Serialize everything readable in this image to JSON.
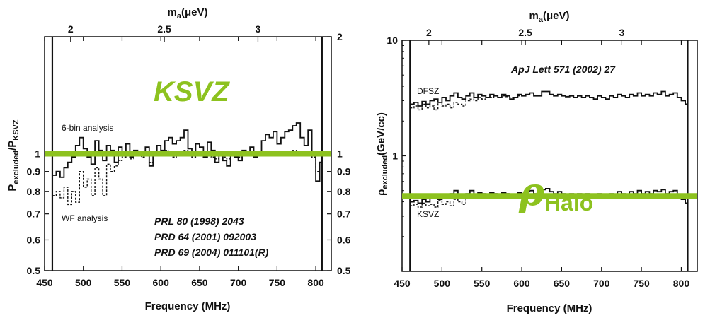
{
  "colors": {
    "accent": "#8dc21f",
    "line": "#111111"
  },
  "chart_data": [
    {
      "type": "line",
      "title": "KSVZ",
      "xlabel": "Frequency (MHz)",
      "ylabel_main": "P",
      "ylabel_sub1": "excluded",
      "ylabel_mid": "/P",
      "ylabel_sub2": "KSVZ",
      "top_axis_main": "m",
      "top_axis_sub": "a",
      "top_axis_unit": "(μeV)",
      "xlim": [
        450,
        820
      ],
      "ylim": [
        0.5,
        2
      ],
      "yscale": "log",
      "xticks": [
        "450",
        "500",
        "550",
        "600",
        "650",
        "700",
        "750",
        "800"
      ],
      "yticks_left": [
        "0.5",
        "0.6",
        "0.7",
        "0.8",
        "0.9",
        "1"
      ],
      "yticks_right": [
        "0.5",
        "0.6",
        "0.7",
        "0.8",
        "0.9",
        "1",
        "2"
      ],
      "top_ticks": [
        "2",
        "2.5",
        "3"
      ],
      "top_tick_freq": [
        483.6,
        604.5,
        725.4
      ],
      "bounds": [
        460,
        808
      ],
      "reference_line": 1,
      "annotations": [
        "6-bin analysis",
        "WF analysis"
      ],
      "references": [
        "PRL 80 (1998) 2043",
        "PRD 64 (2001) 092003",
        "PRD 69 (2004) 011101(R)"
      ],
      "series": [
        {
          "name": "6-bin analysis",
          "style": "solid",
          "x": [
            460,
            465,
            470,
            475,
            480,
            485,
            490,
            495,
            500,
            505,
            510,
            515,
            520,
            525,
            530,
            535,
            540,
            545,
            550,
            555,
            560,
            565,
            570,
            575,
            580,
            585,
            590,
            595,
            600,
            605,
            610,
            615,
            620,
            625,
            630,
            635,
            640,
            645,
            650,
            655,
            660,
            665,
            670,
            675,
            680,
            685,
            690,
            695,
            700,
            705,
            710,
            715,
            720,
            725,
            730,
            735,
            740,
            745,
            750,
            755,
            760,
            765,
            770,
            775,
            780,
            785,
            790,
            795,
            800,
            805,
            808
          ],
          "values": [
            0.88,
            0.9,
            0.87,
            0.92,
            0.95,
            0.98,
            1.05,
            1.1,
            1.03,
            0.98,
            0.94,
            1.08,
            1.02,
            0.96,
            1.05,
            1.02,
            0.95,
            1.04,
            1.0,
            1.06,
            0.98,
            1.02,
            1.01,
            0.99,
            1.04,
            0.93,
            1.0,
            1.05,
            1.02,
            1.08,
            1.1,
            1.06,
            1.08,
            1.1,
            1.15,
            1.03,
            1.0,
            1.06,
            1.04,
            0.98,
            1.07,
            1.02,
            0.95,
            0.99,
            0.96,
            0.93,
            1.0,
            0.98,
            0.96,
            1.02,
            1.0,
            1.04,
            0.98,
            1.0,
            1.08,
            1.12,
            1.1,
            1.14,
            1.06,
            1.1,
            1.14,
            1.15,
            1.18,
            1.2,
            1.1,
            1.05,
            1.15,
            1.0,
            0.85,
            0.95,
            0.95
          ]
        },
        {
          "name": "WF analysis",
          "style": "dashed",
          "x": [
            460,
            465,
            470,
            475,
            480,
            485,
            490,
            495,
            500,
            505,
            510,
            515,
            520,
            525,
            530,
            535,
            540,
            545,
            550,
            555,
            560,
            565,
            570,
            575,
            580,
            585,
            590,
            595,
            600,
            605,
            610,
            615,
            620,
            625,
            630,
            635,
            640,
            645,
            650,
            655,
            660,
            665,
            670,
            675,
            680,
            685,
            690,
            695,
            700,
            705,
            710,
            715,
            720,
            725,
            730,
            735,
            740,
            745,
            750,
            755,
            760,
            765,
            770,
            775,
            780,
            785,
            790,
            795,
            800,
            805,
            808
          ],
          "values": [
            0.78,
            0.8,
            0.77,
            0.82,
            0.74,
            0.8,
            0.75,
            0.9,
            0.82,
            0.86,
            0.78,
            0.92,
            0.86,
            0.78,
            0.94,
            0.9,
            0.93,
            0.96,
            0.98,
            1.0,
            0.97,
            1.0,
            0.99,
            0.98,
            1.01,
            0.95,
            0.99,
            1.0,
            0.99,
            1.02,
            1.0,
            0.98,
            1.01,
            1.0,
            1.02,
            0.99,
            0.98,
            1.0,
            1.01,
            0.99,
            1.0,
            0.98,
            0.97,
            0.99,
            0.98,
            0.97,
            1.0,
            0.99,
            0.98,
            1.0,
            1.0,
            1.01,
            0.99,
            1.0,
            1.01,
            1.0,
            1.0,
            1.01,
            0.99,
            1.0,
            1.01,
            1.0,
            1.02,
            1.01,
            1.0,
            0.99,
            1.0,
            0.98,
            0.9,
            0.95,
            0.95
          ]
        }
      ]
    },
    {
      "type": "line",
      "title_symbol": "ρ",
      "title_sub": "Halo",
      "xlabel": "Frequency (MHz)",
      "ylabel_main": "ρ",
      "ylabel_sub1": "excluded",
      "ylabel_mid": "(GeV/cc)",
      "top_axis_main": "m",
      "top_axis_sub": "a",
      "top_axis_unit": "(μeV)",
      "xlim": [
        450,
        820
      ],
      "ylim": [
        0.1,
        10
      ],
      "yscale": "log",
      "xticks": [
        "450",
        "500",
        "550",
        "600",
        "650",
        "700",
        "750",
        "800"
      ],
      "yticks_left": [
        "1",
        "10"
      ],
      "top_ticks": [
        "2",
        "2.5",
        "3"
      ],
      "top_tick_freq": [
        483.6,
        604.5,
        725.4
      ],
      "bounds": [
        460,
        808
      ],
      "reference_line": 0.45,
      "annotations": [
        "DFSZ",
        "KSVZ"
      ],
      "references": [
        "ApJ Lett 571 (2002) 27"
      ],
      "series": [
        {
          "name": "DFSZ",
          "style": "solid",
          "x": [
            460,
            465,
            470,
            475,
            480,
            485,
            490,
            495,
            500,
            505,
            510,
            515,
            520,
            525,
            530,
            535,
            540,
            545,
            550,
            555,
            560,
            565,
            570,
            575,
            580,
            585,
            590,
            595,
            600,
            605,
            610,
            615,
            620,
            625,
            630,
            635,
            640,
            645,
            650,
            655,
            660,
            665,
            670,
            675,
            680,
            685,
            690,
            695,
            700,
            705,
            710,
            715,
            720,
            725,
            730,
            735,
            740,
            745,
            750,
            755,
            760,
            765,
            770,
            775,
            780,
            785,
            790,
            795,
            800,
            805,
            808
          ],
          "values": [
            2.8,
            2.9,
            2.7,
            2.95,
            2.8,
            3.0,
            3.1,
            2.9,
            3.2,
            3.0,
            3.3,
            3.5,
            3.2,
            3.1,
            3.3,
            3.5,
            3.2,
            3.4,
            3.3,
            3.2,
            3.4,
            3.3,
            3.2,
            3.4,
            3.3,
            3.1,
            3.2,
            3.4,
            3.3,
            3.4,
            3.5,
            3.3,
            3.3,
            3.6,
            3.6,
            3.4,
            3.3,
            3.4,
            3.3,
            3.25,
            3.3,
            3.2,
            3.3,
            3.2,
            3.3,
            3.2,
            3.1,
            3.3,
            3.2,
            3.1,
            3.3,
            3.2,
            3.4,
            3.3,
            3.2,
            3.4,
            3.3,
            3.5,
            3.3,
            3.4,
            3.3,
            3.5,
            3.4,
            3.6,
            3.3,
            3.4,
            3.5,
            3.2,
            3.0,
            2.8,
            3.0
          ]
        },
        {
          "name": "DFSZ WF",
          "style": "dashed",
          "x": [
            460,
            465,
            470,
            475,
            480,
            485,
            490,
            495,
            500,
            505,
            510,
            515,
            520,
            525,
            530,
            535,
            540,
            545,
            550,
            555,
            560,
            565,
            570,
            575,
            580,
            585,
            590,
            595,
            600
          ],
          "values": [
            2.6,
            2.7,
            2.5,
            2.8,
            2.6,
            2.7,
            2.5,
            2.9,
            2.7,
            2.8,
            2.6,
            2.9,
            2.8,
            2.7,
            3.0,
            3.1,
            3.0,
            3.2,
            3.1,
            3.2,
            3.2,
            3.3,
            3.2,
            3.3,
            3.25,
            3.2,
            3.2,
            3.3,
            3.3
          ]
        },
        {
          "name": "KSVZ",
          "style": "solid",
          "x": [
            460,
            465,
            470,
            475,
            480,
            485,
            490,
            495,
            500,
            505,
            510,
            515,
            520,
            525,
            530,
            535,
            540,
            545,
            550,
            555,
            560,
            565,
            570,
            575,
            580,
            585,
            590,
            595,
            600,
            605,
            610,
            615,
            620,
            625,
            630,
            635,
            640,
            645,
            650,
            655,
            660,
            665,
            670,
            675,
            680,
            685,
            690,
            695,
            700,
            705,
            710,
            715,
            720,
            725,
            730,
            735,
            740,
            745,
            750,
            755,
            760,
            765,
            770,
            775,
            780,
            785,
            790,
            795,
            800,
            805,
            808
          ],
          "values": [
            0.4,
            0.41,
            0.39,
            0.42,
            0.4,
            0.43,
            0.45,
            0.42,
            0.46,
            0.43,
            0.47,
            0.5,
            0.46,
            0.44,
            0.47,
            0.5,
            0.46,
            0.48,
            0.47,
            0.46,
            0.48,
            0.47,
            0.45,
            0.48,
            0.47,
            0.44,
            0.46,
            0.48,
            0.47,
            0.49,
            0.5,
            0.47,
            0.47,
            0.51,
            0.52,
            0.49,
            0.47,
            0.49,
            0.47,
            0.46,
            0.47,
            0.46,
            0.47,
            0.46,
            0.47,
            0.45,
            0.44,
            0.47,
            0.46,
            0.44,
            0.47,
            0.46,
            0.49,
            0.47,
            0.46,
            0.49,
            0.47,
            0.5,
            0.47,
            0.49,
            0.47,
            0.5,
            0.49,
            0.51,
            0.47,
            0.49,
            0.5,
            0.46,
            0.42,
            0.39,
            0.42
          ]
        },
        {
          "name": "KSVZ WF",
          "style": "dashed",
          "x": [
            460,
            465,
            470,
            475,
            480,
            485,
            490,
            495,
            500,
            505,
            510,
            515,
            520,
            525,
            530,
            535,
            540,
            545,
            550,
            555,
            560,
            565,
            570,
            575,
            580,
            585,
            590,
            595,
            600
          ],
          "values": [
            0.37,
            0.38,
            0.36,
            0.39,
            0.37,
            0.38,
            0.36,
            0.41,
            0.38,
            0.4,
            0.37,
            0.42,
            0.4,
            0.38,
            0.43,
            0.45,
            0.43,
            0.46,
            0.45,
            0.46,
            0.46,
            0.47,
            0.46,
            0.47,
            0.47,
            0.46,
            0.46,
            0.47,
            0.47
          ]
        }
      ]
    }
  ]
}
